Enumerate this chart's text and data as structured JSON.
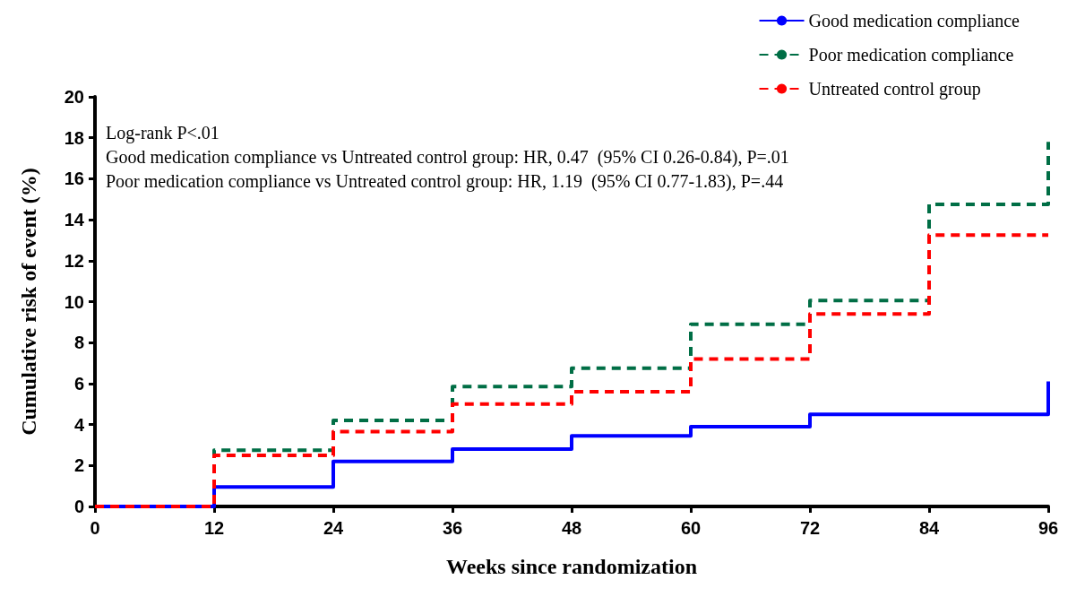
{
  "chart_data": {
    "type": "step",
    "xlabel": "Weeks since randomization",
    "ylabel": "Cumulative risk of event (%)",
    "x": [
      0,
      12,
      24,
      36,
      48,
      60,
      72,
      84,
      96
    ],
    "series": [
      {
        "name": "Good medication compliance",
        "color": "#0000ff",
        "line_style": "solid",
        "values": [
          0,
          0.95,
          2.2,
          2.8,
          3.45,
          3.9,
          4.5,
          4.5,
          6.1
        ]
      },
      {
        "name": "Poor medication compliance",
        "color": "#006e45",
        "line_style": "dashed",
        "values": [
          0,
          2.75,
          4.2,
          5.85,
          6.75,
          8.9,
          10.05,
          14.75,
          17.8
        ]
      },
      {
        "name": "Untreated control group",
        "color": "#ff0000",
        "line_style": "dashed",
        "values": [
          0,
          2.5,
          3.65,
          5.0,
          5.6,
          7.2,
          9.4,
          13.25,
          13.25
        ]
      }
    ],
    "xlim": [
      0,
      96
    ],
    "xticks": [
      0,
      12,
      24,
      36,
      48,
      60,
      72,
      84,
      96
    ],
    "ylim": [
      0,
      20
    ],
    "yticks": [
      0,
      2,
      4,
      6,
      8,
      10,
      12,
      14,
      16,
      18,
      20
    ],
    "grid": false,
    "legend": "top right",
    "marker": "none",
    "annotations": [
      "Log-rank P<.01",
      "Good medication compliance vs Untreated control group: HR, 0.47  (95% CI 0.26-0.84), P=.01",
      "Poor medication compliance vs Untreated control group: HR, 1.19  (95% CI 0.77-1.83), P=.44"
    ]
  }
}
